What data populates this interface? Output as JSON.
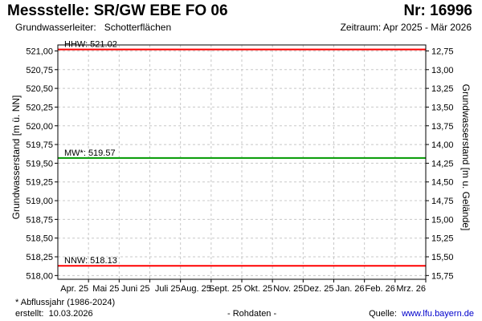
{
  "header": {
    "title": "Messstelle: SR/GW EBE FO 06",
    "station_nr": "Nr: 16996",
    "aquifer_label": "Grundwasserleiter:",
    "aquifer_value": "Schotterflächen",
    "period": "Zeitraum: Apr 2025 - Mär 2026"
  },
  "footer": {
    "footnote": "* Abflussjahr (1986-2024)",
    "created_label": "erstellt:",
    "created_date": "10.03.2026",
    "raw_data": "- Rohdaten -",
    "source_label": "Quelle:",
    "source_link": "www.lfu.bayern.de"
  },
  "colors": {
    "hhw": "#ff0000",
    "mw": "#009900",
    "nnw": "#ff0000",
    "grid": "#c8c8c8"
  },
  "chart_data": {
    "type": "line",
    "categories": [
      "Apr. 25",
      "Mai 25",
      "Juni 25",
      "Juli 25",
      "Aug. 25",
      "Sept. 25",
      "Okt. 25",
      "Nov. 25",
      "Dez. 25",
      "Jan. 26",
      "Feb. 26",
      "Mrz. 26"
    ],
    "ylabel": "Grundwasserstand [m ü. NN]",
    "ylabel_right": "Grundwasserstand [m u. Gelände]",
    "ylim": [
      517.95,
      521.08
    ],
    "yticks": [
      518.0,
      518.25,
      518.5,
      518.75,
      519.0,
      519.25,
      519.5,
      519.75,
      520.0,
      520.25,
      520.5,
      520.75,
      521.0
    ],
    "ytick_labels": [
      "518,00",
      "518,25",
      "518,50",
      "518,75",
      "519,00",
      "519,25",
      "519,50",
      "519,75",
      "520,00",
      "520,25",
      "520,50",
      "520,75",
      "521,00"
    ],
    "right_axis_offset": 533.75,
    "right_yticks": [
      15.75,
      15.5,
      15.25,
      15.0,
      14.75,
      14.5,
      14.25,
      14.0,
      13.75,
      13.5,
      13.25,
      13.0,
      12.75
    ],
    "right_ytick_labels": [
      "15,75",
      "15,50",
      "15,25",
      "15,00",
      "14,75",
      "14,50",
      "14,25",
      "14,00",
      "13,75",
      "13,50",
      "13,25",
      "13,00",
      "12,75"
    ],
    "reference_lines": [
      {
        "name": "HHW",
        "label": "HHW: 521.02",
        "value": 521.02,
        "color": "#ff0000"
      },
      {
        "name": "MW",
        "label": "MW*: 519.57",
        "value": 519.57,
        "color": "#009900"
      },
      {
        "name": "NNW",
        "label": "NNW: 518.13",
        "value": 518.13,
        "color": "#ff0000"
      }
    ],
    "grid": true
  }
}
